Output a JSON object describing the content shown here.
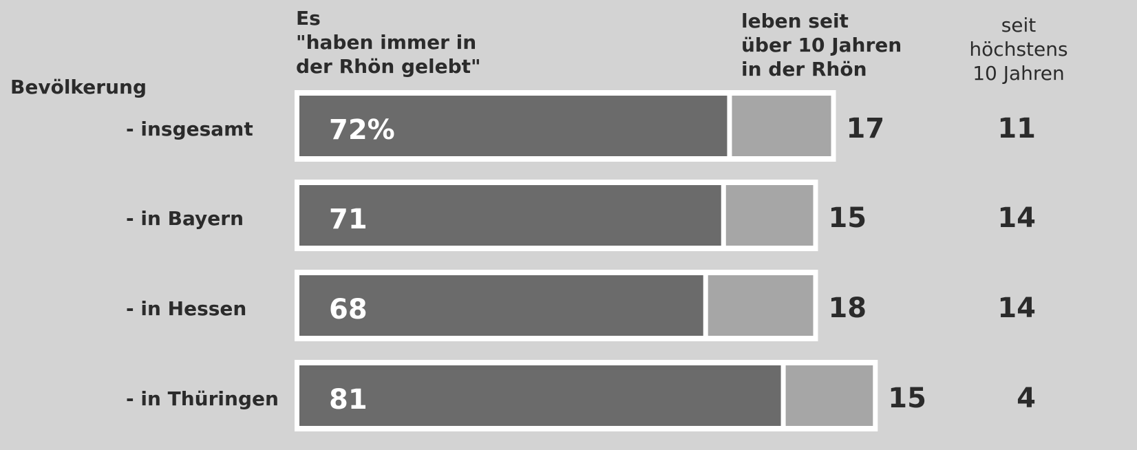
{
  "chart_data": {
    "type": "stacked-bar",
    "group_label": "Bevölkerung",
    "categories": [
      "- insgesamt",
      "- in Bayern",
      "- in Hessen",
      "- in Thüringen"
    ],
    "series": [
      {
        "name": "Es\n\"haben immer in\nder Rhön gelebt\"",
        "color": "#6b6b6b",
        "values": [
          72,
          71,
          68,
          81
        ],
        "value_labels": [
          "72%",
          "71",
          "68",
          "81"
        ]
      },
      {
        "name": "leben seit\nüber 10 Jahren\nin der Rhön",
        "color": "#a6a6a6",
        "values": [
          17,
          15,
          18,
          15
        ]
      },
      {
        "name": "seit\nhöchstens\n10 Jahren",
        "values": [
          11,
          14,
          14,
          4
        ]
      }
    ]
  }
}
